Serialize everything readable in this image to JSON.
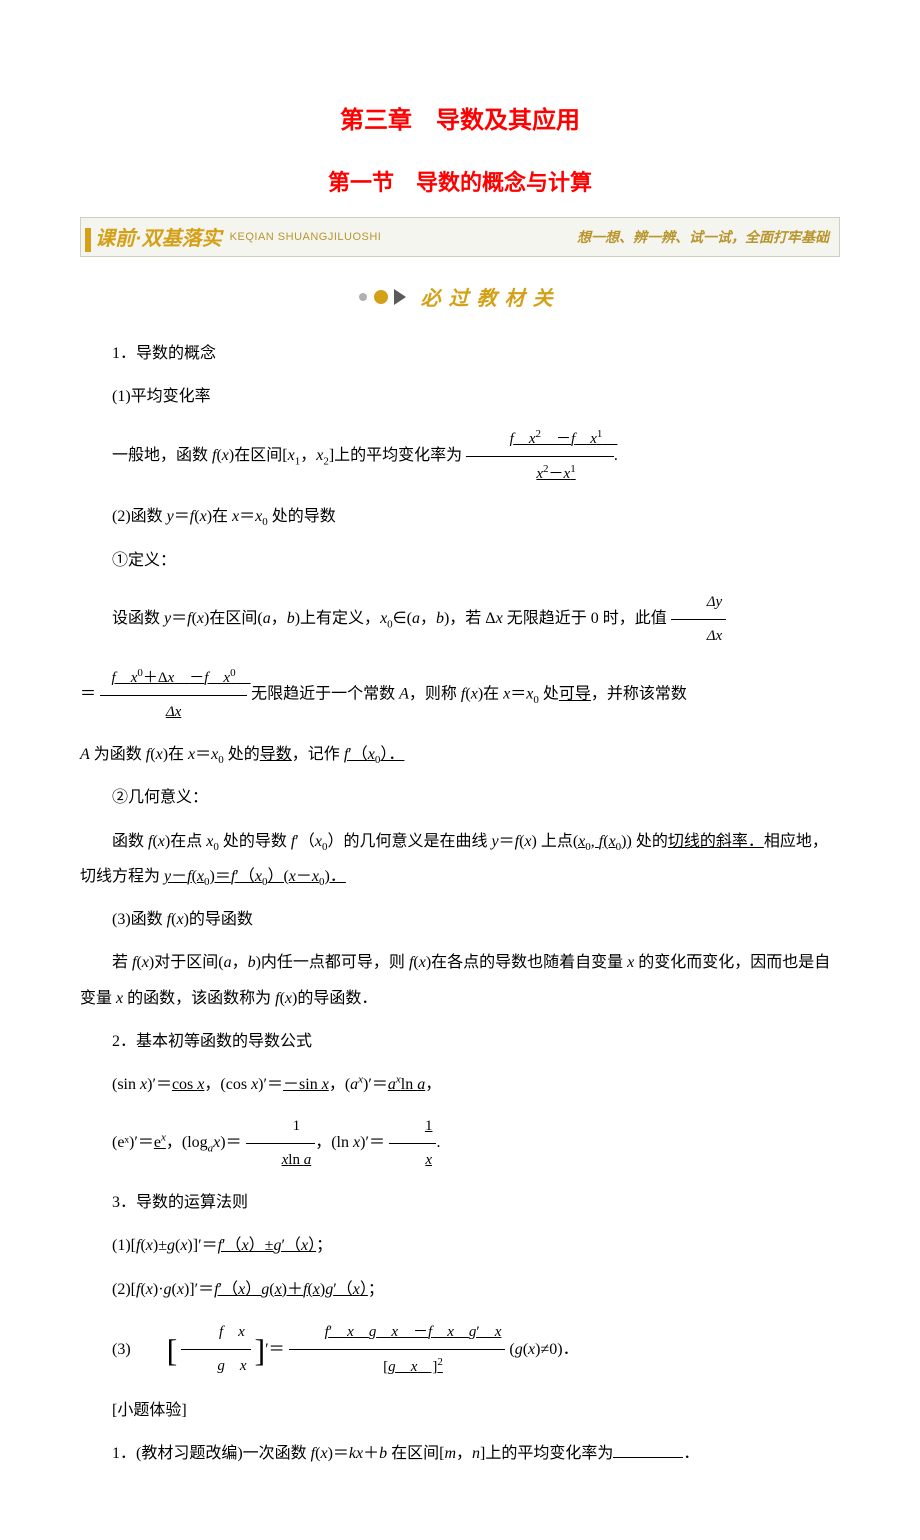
{
  "chapter_title": "第三章　导数及其应用",
  "section_title": "第一节　导数的概念与计算",
  "banner": {
    "left": "课前·双基落实",
    "pinyin": "KEQIAN SHUANGJILUOSHI",
    "right": "想一想、辨一辨、试一试，全面打牢基础"
  },
  "subheader": "必过教材关",
  "s1": {
    "h": "1．导数的概念",
    "p1": "(1)平均变化率",
    "p2_a": "一般地，函数 ",
    "p2_b": "在区间[",
    "p2_c": "]上的平均变化率为",
    "frac1_num_a": "f",
    "frac1_num_b": "x",
    "frac1_num_minus": "－",
    "frac1_num_c": "f",
    "frac1_num_d": "x",
    "frac1_den_a": "x",
    "frac1_den_minus": "－",
    "frac1_den_b": "x",
    "p2_end": ".",
    "p3_a": "(2)函数 ",
    "p3_b": "在 ",
    "p3_c": " 处的导数",
    "p4": "①定义：",
    "p5_a": "设函数 ",
    "p5_b": "在区间(",
    "p5_c": ")上有定义，",
    "p5_d": "∈(",
    "p5_e": ")，若 Δ",
    "p5_f": " 无限趋近于 0 时，此值",
    "frac2_num": "Δy",
    "frac2_den": "Δx",
    "p6_eq": "＝",
    "frac3_num_a": "f",
    "frac3_num_b": "x",
    "frac3_num_plus": "＋Δ",
    "frac3_num_c": "x",
    "frac3_num_minus": "－",
    "frac3_num_d": "f",
    "frac3_num_e": "x",
    "frac3_den": "Δx",
    "p6_a": "无限趋近于一个常数 ",
    "p6_b": "，则称 ",
    "p6_c": "在 ",
    "p6_d": " 处",
    "p6_e": "可导",
    "p6_f": "，并称该常数",
    "p7_a": " 为函数 ",
    "p7_b": "在 ",
    "p7_c": " 处的",
    "p7_d": "导数",
    "p7_e": "，记作 ",
    "p7_f": "f′（x₀）．",
    "p8": "②几何意义：",
    "p9_a": "函数 ",
    "p9_b": "在点 ",
    "p9_c": " 处的导数 ",
    "p9_d": "的几何意义是在曲线 ",
    "p9_e": " 上点",
    "p9_f": "(x₀, f(x₀))",
    "p9_g": " 处的",
    "p9_h": "切线的斜率．",
    "p9_i": "相应地，切线方程为 ",
    "p9_j": "y－f(x₀)＝f′（x₀）(x－x₀)．",
    "p10_a": "(3)函数 ",
    "p10_b": "的导函数",
    "p11_a": "若 ",
    "p11_b": "对于区间(",
    "p11_c": ")内任一点都可导，则 ",
    "p11_d": "在各点的导数也随着自变量 ",
    "p11_e": " 的变化而变化，因而也是自变量 ",
    "p11_f": " 的函数，该函数称为 ",
    "p11_g": "的导函数．"
  },
  "s2": {
    "h": "2．基本初等函数的导数公式",
    "l1_a": "(sin ",
    "l1_b": ")′＝",
    "l1_c": "cos x",
    "l1_d": "，(cos ",
    "l1_e": ")′＝",
    "l1_f": "－sin x",
    "l1_g": "，(",
    "l1_h": ")′＝",
    "l1_i": "aˣln a",
    "l1_j": "，",
    "l2_a": "(eˣ)′＝",
    "l2_b": "eˣ",
    "l2_c": "，(log",
    "l2_d": ")＝",
    "l2_num": "1",
    "l2_den": "xln a",
    "l2_e": "，(ln ",
    "l2_f": ")′＝",
    "l2_num2": "1",
    "l2_den2": "x",
    "l2_g": "."
  },
  "s3": {
    "h": "3．导数的运算法则",
    "r1_a": "(1)[",
    "r1_b": "±",
    "r1_c": "]′＝",
    "r1_d": "f′（x）±g′（x）",
    "r1_e": "；",
    "r2_a": "(2)[",
    "r2_b": "·",
    "r2_c": "]′＝",
    "r2_d": "f′（x）g(x)＋f(x)g′（x）",
    "r2_e": "；",
    "r3_a": "(3)",
    "r3_num": "f　x",
    "r3_den": "g　x",
    "r3_b": "′＝",
    "r3_d_num": "f′　x　g　x　－f　x　g′　x",
    "r3_d_den": "[g　x　]²",
    "r3_c": "(",
    "r3_e": "≠0)．"
  },
  "exercise": {
    "h": "[小题体验]",
    "q1_a": "1．(教材习题改编)一次函数 ",
    "q1_b": "＝",
    "q1_c": "＋",
    "q1_d": " 在区间[",
    "q1_e": "]上的平均变化率为",
    "q1_f": "．"
  },
  "colors": {
    "title_red": "#ff0000",
    "banner_gold": "#d4a017",
    "banner_bg": "#f5f5f0",
    "text": "#000000"
  }
}
